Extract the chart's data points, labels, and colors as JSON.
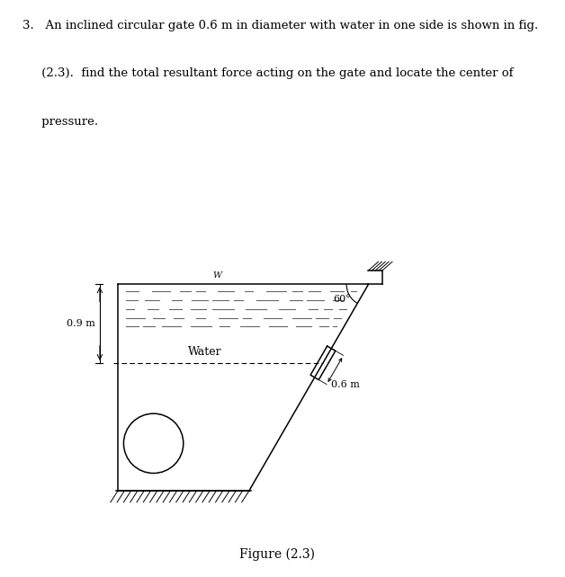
{
  "figure_caption": "Figure (2.3)",
  "water_label": "Water",
  "dim_09": "0.9 m",
  "dim_06": "0.6 m",
  "angle_label": "60°",
  "wl_label": "W",
  "bg_color": "#ffffff",
  "line_color": "#000000",
  "text_line1": "3.   An inclined circular gate 0.6 m in diameter with water in one side is shown in fig.",
  "text_line2": "     (2.3).  find the total resultant force acting on the gate and locate the center of",
  "text_line3": "     pressure."
}
